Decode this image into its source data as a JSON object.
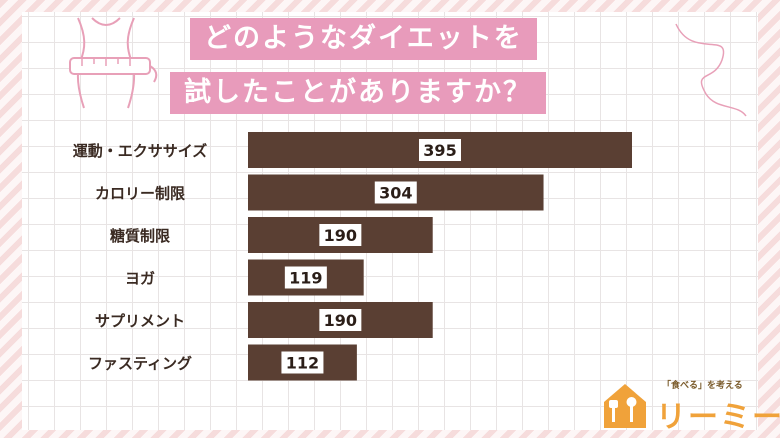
{
  "title": {
    "line1": "どのようなダイエットを",
    "line2": "試したことがありますか？"
  },
  "logo": {
    "tagline": "「食べる」を考える",
    "name": "リーミー"
  },
  "colors": {
    "bar": "#5a3f33",
    "title_bg": "#e89bbb",
    "logo": "#f0a23a",
    "frame_stripe": "#f6dcdc"
  },
  "icons": [
    "body-measure-illustration",
    "house-utensils-logo-icon"
  ],
  "chart_data": {
    "type": "bar",
    "orientation": "horizontal",
    "title": "どのようなダイエットを試したことがありますか？",
    "categories": [
      "運動・エクササイズ",
      "カロリー制限",
      "糖質制限",
      "ヨガ",
      "サプリメント",
      "ファスティング"
    ],
    "values": [
      395,
      304,
      190,
      119,
      190,
      112
    ],
    "xlim": [
      0,
      395
    ],
    "grid": false,
    "legend": "none"
  }
}
